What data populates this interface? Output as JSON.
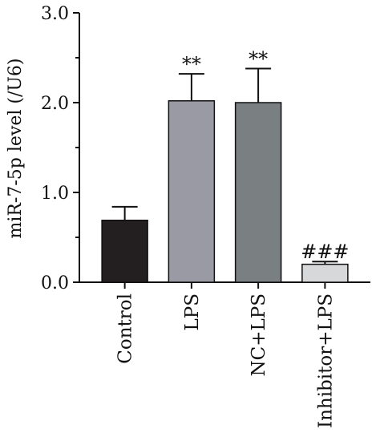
{
  "chart_data": {
    "type": "bar",
    "ylabel": "miR-7-5p level (/U6)",
    "ylim": [
      0,
      3
    ],
    "yticks": [
      0,
      1,
      2,
      3
    ],
    "ytick_labels": [
      "0.0",
      "1.0",
      "2.0",
      "3.0"
    ],
    "categories": [
      "Control",
      "LPS",
      "NC+LPS",
      "Inhibitor+LPS"
    ],
    "values": [
      0.69,
      2.02,
      2.0,
      0.2
    ],
    "errors": [
      0.15,
      0.3,
      0.38,
      0.03
    ],
    "annotations": [
      "",
      "**",
      "**",
      "###"
    ],
    "colors": [
      "#231f20",
      "#999aa3",
      "#7a7f82",
      "#d6d8da"
    ],
    "grid": false,
    "legend": "none"
  }
}
